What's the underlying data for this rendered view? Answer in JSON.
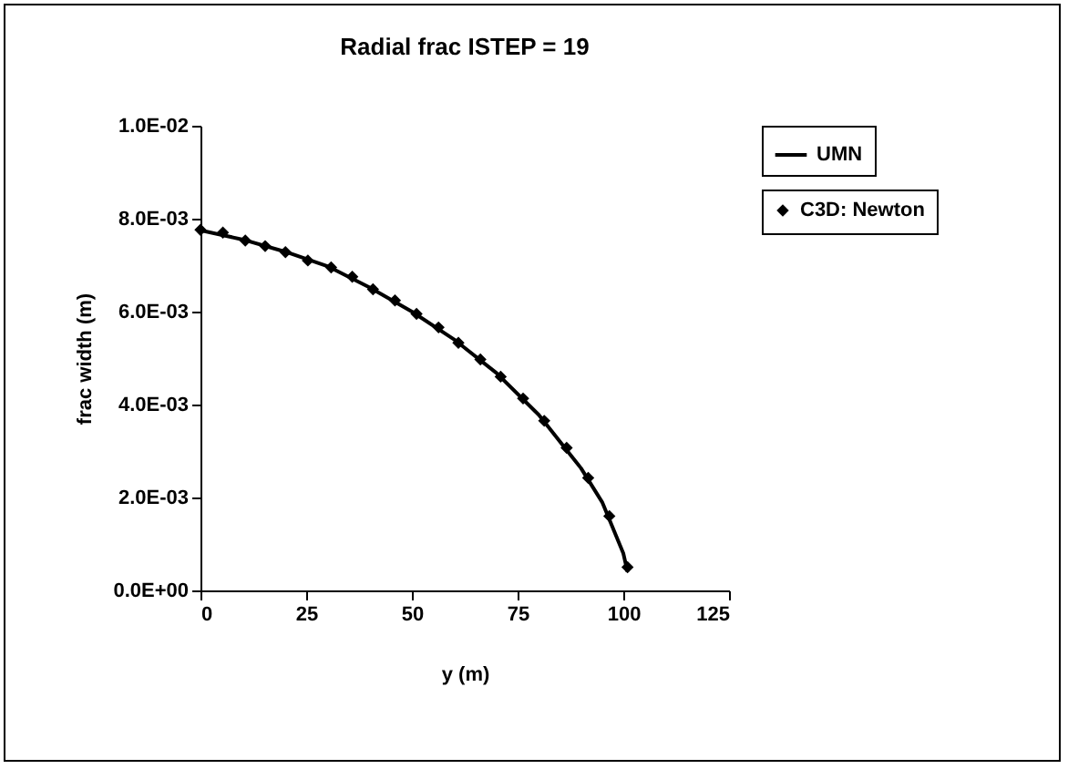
{
  "chart_data": {
    "type": "scatter",
    "title": "Radial frac ISTEP = 19",
    "xlabel": "y (m)",
    "ylabel": "frac width (m)",
    "xlim": [
      0,
      125
    ],
    "xticks": [
      0,
      25,
      50,
      75,
      100,
      125
    ],
    "ylim": [
      0,
      0.01
    ],
    "yticks": [
      {
        "value": 0,
        "label": "0.0E+00"
      },
      {
        "value": 0.002,
        "label": "2.0E-03"
      },
      {
        "value": 0.004,
        "label": "4.0E-03"
      },
      {
        "value": 0.006,
        "label": "6.0E-03"
      },
      {
        "value": 0.008,
        "label": "8.0E-03"
      },
      {
        "value": 0.01,
        "label": "1.0E-02"
      }
    ],
    "grid": false,
    "legend": "right",
    "series": [
      {
        "name": "C3D: Newton",
        "marker": "diamond",
        "color": "#000000",
        "x": [
          0,
          5.3,
          10.6,
          15.3,
          20.1,
          25.4,
          30.9,
          35.9,
          40.8,
          46,
          51.1,
          56.3,
          61,
          66.2,
          71,
          76.3,
          81.3,
          86.6,
          91.7,
          96.7,
          101
        ],
        "values": [
          0.00776,
          0.0077,
          0.00753,
          0.00741,
          0.00728,
          0.0071,
          0.00695,
          0.00675,
          0.00648,
          0.00624,
          0.00595,
          0.00566,
          0.00533,
          0.00497,
          0.0046,
          0.00413,
          0.00365,
          0.00307,
          0.00242,
          0.0016,
          0.0005
        ]
      },
      {
        "name": "UMN",
        "type": "line",
        "marker": "none",
        "line_style": "solid",
        "color": "#000000",
        "x": [
          0,
          10,
          20,
          30,
          40,
          50,
          60,
          70,
          80,
          90,
          95,
          100,
          101
        ],
        "values": [
          0.00775,
          0.00755,
          0.00729,
          0.00698,
          0.00652,
          0.006,
          0.0054,
          0.00468,
          0.00378,
          0.00263,
          0.0019,
          0.0008,
          0.0004
        ]
      }
    ]
  }
}
